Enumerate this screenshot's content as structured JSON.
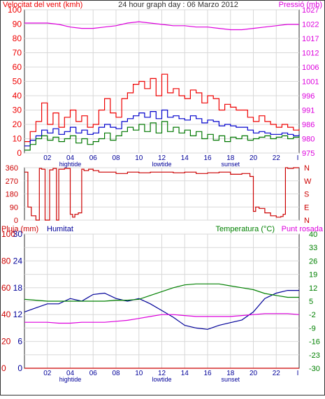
{
  "header": {
    "wind_speed_label": "Velocitat del vent (kmh)",
    "title": "24 hour graph day : 06 Marzo 2012",
    "pressure_label": "Pressió (mb)"
  },
  "colors": {
    "wind_gust": "#ee0000",
    "wind_avg": "#0000cc",
    "wind_low": "#007700",
    "pressure": "#dd00dd",
    "direction": "#cc0000",
    "temperature": "#008000",
    "humidity": "#000099",
    "dewpoint": "#dd00dd",
    "rain": "#cc0000",
    "grid": "#d8d8d8",
    "frame": "#333333"
  },
  "x_axis": {
    "hour_labels": [
      "02",
      "04",
      "06",
      "08",
      "10",
      "12",
      "14",
      "16",
      "18",
      "20",
      "22",
      "I"
    ],
    "markers": [
      {
        "hour": 4,
        "label": "hightide"
      },
      {
        "hour": 12,
        "label": "lowtide"
      },
      {
        "hour": 18,
        "label": "sunset"
      }
    ]
  },
  "chart_data": [
    {
      "type": "line",
      "name": "wind-speed-and-pressure",
      "left_axis": {
        "label": "Velocitat del vent (kmh)",
        "ticks": [
          100,
          90,
          80,
          70,
          60,
          50,
          40,
          30,
          20,
          10,
          0
        ],
        "range": [
          0,
          100
        ]
      },
      "right_axis": {
        "label": "Pressió (mb)",
        "ticks": [
          1027,
          1022,
          1017,
          1012,
          1006,
          1001,
          996,
          991,
          986,
          980,
          975
        ],
        "range": [
          974,
          1028
        ]
      },
      "series": [
        {
          "role": "gust",
          "axis": "left",
          "color_key": "wind_gust",
          "x": [
            0,
            0.5,
            1,
            1.5,
            2,
            2.5,
            3,
            3.5,
            4,
            4.5,
            5,
            5.5,
            6,
            6.5,
            7,
            7.5,
            8,
            8.5,
            9,
            9.5,
            10,
            10.5,
            11,
            11.5,
            12,
            12.5,
            13,
            13.5,
            14,
            14.5,
            15,
            15.5,
            16,
            16.5,
            17,
            17.5,
            18,
            18.5,
            19,
            19.5,
            20,
            20.5,
            21,
            21.5,
            22,
            22.5,
            23,
            23.5,
            24
          ],
          "values": [
            8,
            15,
            22,
            35,
            20,
            28,
            18,
            25,
            30,
            22,
            26,
            18,
            20,
            30,
            38,
            28,
            25,
            38,
            42,
            48,
            50,
            45,
            52,
            40,
            55,
            42,
            45,
            40,
            38,
            44,
            42,
            35,
            40,
            38,
            30,
            34,
            32,
            30,
            30,
            25,
            22,
            26,
            22,
            20,
            18,
            20,
            18,
            16,
            17
          ]
        },
        {
          "role": "average",
          "axis": "left",
          "color_key": "wind_avg",
          "x": [
            0,
            0.5,
            1,
            1.5,
            2,
            2.5,
            3,
            3.5,
            4,
            4.5,
            5,
            5.5,
            6,
            6.5,
            7,
            7.5,
            8,
            8.5,
            9,
            9.5,
            10,
            10.5,
            11,
            11.5,
            12,
            12.5,
            13,
            13.5,
            14,
            14.5,
            15,
            15.5,
            16,
            16.5,
            17,
            17.5,
            18,
            18.5,
            19,
            19.5,
            20,
            20.5,
            21,
            21.5,
            22,
            22.5,
            23,
            23.5,
            24
          ],
          "values": [
            5,
            9,
            12,
            16,
            14,
            17,
            13,
            15,
            18,
            14,
            16,
            13,
            14,
            18,
            20,
            18,
            17,
            22,
            24,
            26,
            28,
            25,
            29,
            24,
            30,
            25,
            26,
            24,
            23,
            26,
            24,
            21,
            23,
            22,
            19,
            20,
            19,
            18,
            18,
            16,
            14,
            15,
            14,
            13,
            13,
            14,
            13,
            12,
            13
          ]
        },
        {
          "role": "low",
          "axis": "left",
          "color_key": "wind_low",
          "x": [
            0,
            0.5,
            1,
            1.5,
            2,
            2.5,
            3,
            3.5,
            4,
            4.5,
            5,
            5.5,
            6,
            6.5,
            7,
            7.5,
            8,
            8.5,
            9,
            9.5,
            10,
            10.5,
            11,
            11.5,
            12,
            12.5,
            13,
            13.5,
            14,
            14.5,
            15,
            15.5,
            16,
            16.5,
            17,
            17.5,
            18,
            18.5,
            19,
            19.5,
            20,
            20.5,
            21,
            21.5,
            22,
            22.5,
            23,
            23.5,
            24
          ],
          "values": [
            2,
            6,
            10,
            12,
            9,
            11,
            8,
            10,
            12,
            7,
            10,
            6,
            8,
            10,
            14,
            9,
            12,
            15,
            18,
            16,
            20,
            15,
            21,
            14,
            22,
            15,
            18,
            14,
            16,
            12,
            15,
            10,
            13,
            9,
            12,
            8,
            11,
            10,
            12,
            9,
            10,
            11,
            12,
            10,
            11,
            12,
            10,
            11,
            12
          ]
        },
        {
          "role": "pressure",
          "axis": "right",
          "color_key": "pressure",
          "x": [
            0,
            1,
            2,
            3,
            4,
            5,
            6,
            7,
            8,
            9,
            10,
            11,
            12,
            13,
            14,
            15,
            16,
            17,
            18,
            19,
            20,
            21,
            22,
            23,
            24
          ],
          "values": [
            1023,
            1023,
            1023,
            1022.5,
            1021.5,
            1021,
            1021,
            1021.5,
            1022,
            1023,
            1023.5,
            1023,
            1022.5,
            1022,
            1022,
            1021.5,
            1021.5,
            1021,
            1020.5,
            1020.5,
            1021,
            1021.5,
            1022,
            1022.5,
            1022.5
          ]
        }
      ]
    },
    {
      "type": "line",
      "name": "wind-direction",
      "left_axis": {
        "ticks": [
          360,
          270,
          180,
          90,
          0
        ],
        "range": [
          0,
          360
        ]
      },
      "right_labels": [
        "N",
        "W",
        "S",
        "E",
        "N"
      ],
      "series": [
        {
          "role": "direction",
          "color_key": "direction",
          "x": [
            0,
            0.3,
            0.6,
            1,
            1.3,
            1.5,
            1.8,
            2.2,
            2.5,
            2.8,
            3,
            3.5,
            4,
            4.2,
            4.4,
            4.7,
            5,
            5.2,
            5.6,
            6,
            6.5,
            7,
            8,
            9,
            10,
            11,
            12,
            13,
            14,
            15,
            16,
            17,
            18,
            19,
            19.7,
            20,
            20.2,
            20.5,
            21,
            21.5,
            22,
            22.4,
            22.6,
            22.8,
            23,
            23.5,
            24
          ],
          "values": [
            330,
            90,
            30,
            0,
            355,
            350,
            0,
            345,
            355,
            0,
            350,
            355,
            40,
            20,
            40,
            50,
            350,
            340,
            350,
            340,
            330,
            330,
            320,
            330,
            325,
            330,
            330,
            325,
            330,
            320,
            325,
            330,
            315,
            320,
            300,
            60,
            90,
            80,
            50,
            30,
            20,
            25,
            40,
            360,
            355,
            360,
            360
          ]
        }
      ]
    },
    {
      "type": "line",
      "name": "rain-humidity-temperature-dewpoint",
      "labels": {
        "rain": "Pluja (mm)",
        "humidity": "Humitat",
        "temperature": "Temperatura (°C)",
        "dewpoint": "Punt rosada"
      },
      "rain_axis": {
        "ticks": [
          100,
          80,
          60,
          40,
          20,
          0
        ],
        "range": [
          0,
          100
        ]
      },
      "humidity_axis": {
        "ticks": [
          30,
          24,
          18,
          12,
          6,
          0
        ],
        "range": [
          0,
          30
        ]
      },
      "temperature_axis": {
        "ticks": [
          40,
          33,
          26,
          19,
          12,
          5,
          -2,
          -9,
          -16,
          -23,
          -30
        ],
        "range": [
          -30,
          40
        ]
      },
      "series": [
        {
          "role": "rain",
          "axis": "rain",
          "color_key": "rain",
          "x": [
            0,
            24
          ],
          "values": [
            0,
            0
          ]
        },
        {
          "role": "humidity",
          "axis": "rain",
          "color_key": "humidity",
          "x": [
            0,
            1,
            2,
            3,
            4,
            5,
            6,
            7,
            8,
            9,
            10,
            11,
            12,
            13,
            14,
            15,
            16,
            17,
            18,
            19,
            20,
            21,
            22,
            23,
            24
          ],
          "values": [
            42,
            45,
            48,
            48,
            52,
            50,
            55,
            56,
            52,
            50,
            52,
            48,
            43,
            38,
            32,
            30,
            29,
            32,
            34,
            36,
            42,
            52,
            56,
            58,
            58
          ]
        },
        {
          "role": "temperature",
          "axis": "temperature",
          "color_key": "temperature",
          "x": [
            0,
            1,
            2,
            3,
            4,
            5,
            6,
            7,
            8,
            9,
            10,
            11,
            12,
            13,
            14,
            15,
            16,
            17,
            18,
            19,
            20,
            21,
            22,
            23,
            24
          ],
          "values": [
            6,
            5.5,
            5,
            5,
            5,
            5,
            5,
            5,
            5.5,
            5.5,
            6,
            8,
            10,
            12,
            13.5,
            14,
            14,
            14,
            13,
            12,
            11,
            9,
            8,
            7,
            7
          ]
        },
        {
          "role": "dewpoint",
          "axis": "temperature",
          "color_key": "dewpoint",
          "x": [
            0,
            1,
            2,
            3,
            4,
            5,
            6,
            7,
            8,
            9,
            10,
            11,
            12,
            13,
            14,
            15,
            16,
            17,
            18,
            19,
            20,
            21,
            22,
            23,
            24
          ],
          "values": [
            -6,
            -6,
            -6,
            -6.5,
            -6.5,
            -6,
            -6,
            -6,
            -5.5,
            -5,
            -4,
            -3,
            -2,
            -2,
            -2.5,
            -3,
            -3,
            -3,
            -3,
            -2.5,
            -2,
            -1.5,
            -1.5,
            -1.5,
            -2
          ]
        }
      ]
    }
  ]
}
